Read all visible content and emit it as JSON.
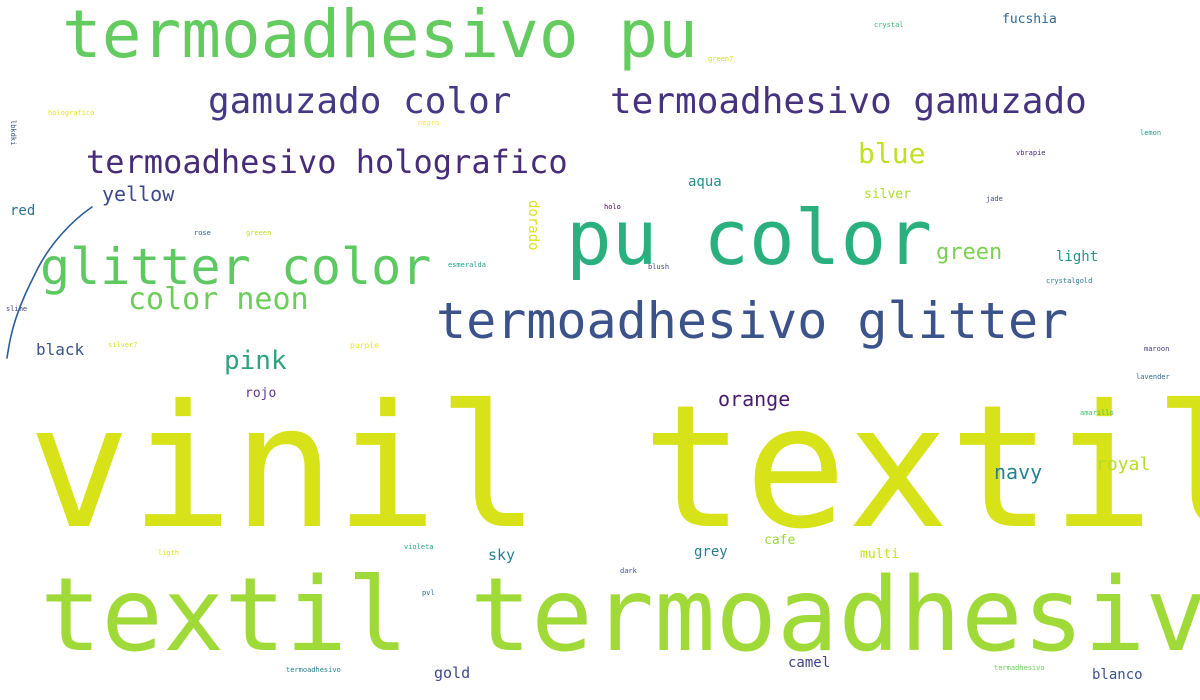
{
  "word_cloud": {
    "words": [
      {
        "text": "vinil textil",
        "color": "#d7e219"
      },
      {
        "text": "textil termoadhesivo",
        "color": "#a0da39"
      },
      {
        "text": "termoadhesivo pu",
        "color": "#63cb5f"
      },
      {
        "text": "pu color",
        "color": "#2ab07f"
      },
      {
        "text": "termoadhesivo glitter",
        "color": "#3b528b"
      },
      {
        "text": "glitter color",
        "color": "#5ec962"
      },
      {
        "text": "termoadhesivo gamuzado",
        "color": "#46327e"
      },
      {
        "text": "gamuzado color",
        "color": "#443983"
      },
      {
        "text": "termoadhesivo holografico",
        "color": "#472c7a"
      },
      {
        "text": "color neon",
        "color": "#6ccd5a"
      },
      {
        "text": "yellow",
        "color": "#3e4a89"
      },
      {
        "text": "blue",
        "color": "#c2df23"
      },
      {
        "text": "green",
        "color": "#7ad151"
      },
      {
        "text": "pink",
        "color": "#2ea37f"
      },
      {
        "text": "orange",
        "color": "#481b6d"
      },
      {
        "text": "navy",
        "color": "#26828e"
      },
      {
        "text": "royal",
        "color": "#b5de2b"
      },
      {
        "text": "light",
        "color": "#1f988b"
      },
      {
        "text": "black",
        "color": "#3b528b"
      },
      {
        "text": "red",
        "color": "#2c728e"
      },
      {
        "text": "aqua",
        "color": "#21918c"
      },
      {
        "text": "silver",
        "color": "#addc30"
      },
      {
        "text": "fucshia",
        "color": "#31688e"
      },
      {
        "text": "dorado",
        "color": "#dde318"
      },
      {
        "text": "rojo",
        "color": "#5b3794"
      },
      {
        "text": "sky",
        "color": "#26828e"
      },
      {
        "text": "grey",
        "color": "#287c8e"
      },
      {
        "text": "cafe",
        "color": "#9bd93c"
      },
      {
        "text": "multi",
        "color": "#c8e020"
      },
      {
        "text": "gold",
        "color": "#3f4788"
      },
      {
        "text": "camel",
        "color": "#404387"
      },
      {
        "text": "blanco",
        "color": "#3b528b"
      },
      {
        "text": "crystal",
        "color": "#35b779"
      },
      {
        "text": "green7",
        "color": "#d0e11c"
      },
      {
        "text": "holografico",
        "color": "#e5e419"
      },
      {
        "text": "negro",
        "color": "#fde725"
      },
      {
        "text": "lemon",
        "color": "#1f9e89"
      },
      {
        "text": "vbrapie",
        "color": "#482878"
      },
      {
        "text": "holo",
        "color": "#440154"
      },
      {
        "text": "jade",
        "color": "#3e4989"
      },
      {
        "text": "rose",
        "color": "#35608d"
      },
      {
        "text": "greeen",
        "color": "#bddf26"
      },
      {
        "text": "esmeralda",
        "color": "#1fa187"
      },
      {
        "text": "blush",
        "color": "#414487"
      },
      {
        "text": "crystalgold",
        "color": "#2a788e"
      },
      {
        "text": "silver7",
        "color": "#d2e21b"
      },
      {
        "text": "purple",
        "color": "#f1e51d"
      },
      {
        "text": "maroon",
        "color": "#453781"
      },
      {
        "text": "lavender",
        "color": "#31688e"
      },
      {
        "text": "amarillo",
        "color": "#44bf70"
      },
      {
        "text": "lbkdki",
        "color": "#365c8d"
      },
      {
        "text": "slime",
        "color": "#3f4889"
      },
      {
        "text": "ligth",
        "color": "#e2e418"
      },
      {
        "text": "violeta",
        "color": "#20a486"
      },
      {
        "text": "dark",
        "color": "#3b528b"
      },
      {
        "text": "pvl",
        "color": "#2c728e"
      },
      {
        "text": "termoadhesivo",
        "color": "#26828e"
      },
      {
        "text": "termadhesivo",
        "color": "#6ccd5a"
      }
    ],
    "stroke_color": "#2b5d98"
  }
}
